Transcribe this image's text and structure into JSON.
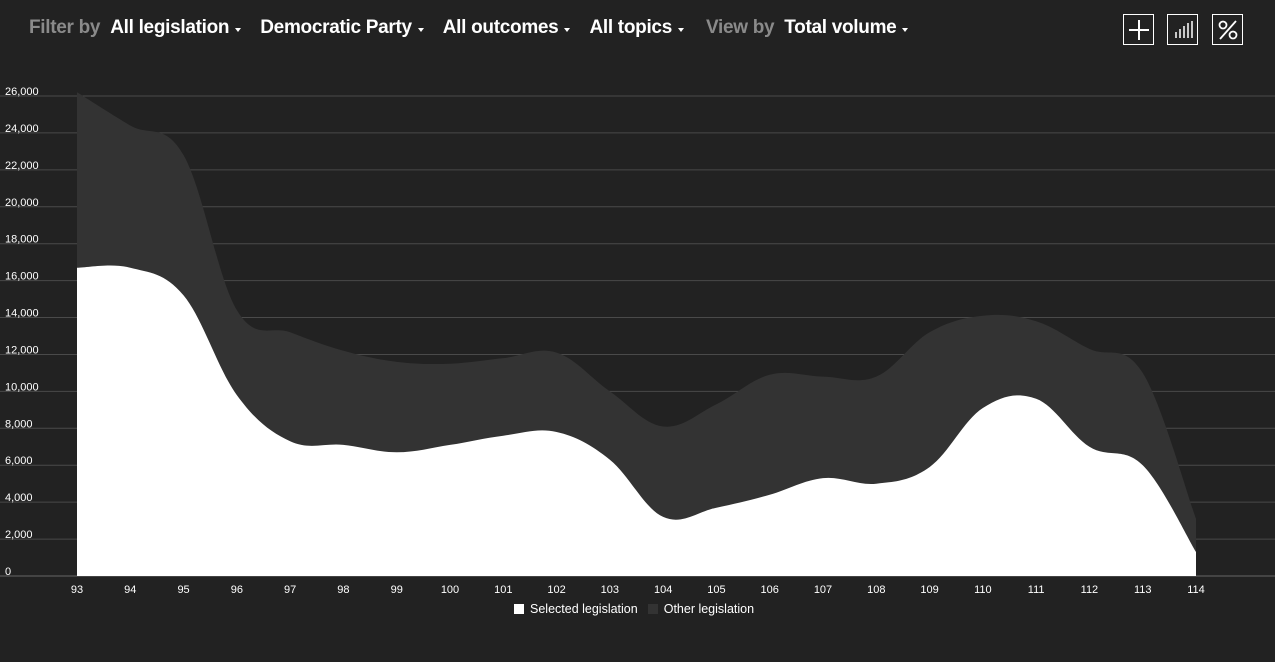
{
  "filters": {
    "filter_by_label": "Filter by",
    "legislation": "All legislation",
    "party": "Democratic Party",
    "outcomes": "All outcomes",
    "topics": "All topics",
    "view_by_label": "View by",
    "view": "Total volume"
  },
  "icons": [
    "plus-icon",
    "bar-chart-icon",
    "percent-icon"
  ],
  "colors": {
    "background": "#222222",
    "selected": "#ffffff",
    "other": "#333333",
    "grid": "#4a4a4a"
  },
  "chart_data": {
    "type": "area",
    "stacked": true,
    "x": [
      "93",
      "94",
      "95",
      "96",
      "97",
      "98",
      "99",
      "100",
      "101",
      "102",
      "103",
      "104",
      "105",
      "106",
      "107",
      "108",
      "109",
      "110",
      "111",
      "112",
      "113",
      "114"
    ],
    "series": [
      {
        "name": "Selected legislation",
        "values": [
          16700,
          16700,
          15200,
          9800,
          7300,
          7100,
          6700,
          7100,
          7600,
          7800,
          6300,
          3200,
          3700,
          4400,
          5300,
          5000,
          5900,
          9100,
          9600,
          7000,
          6000,
          1300
        ]
      },
      {
        "name": "Other legislation",
        "values": [
          9500,
          7700,
          7600,
          4600,
          5900,
          5100,
          4900,
          4400,
          4200,
          4300,
          3700,
          4900,
          5600,
          6500,
          5500,
          5800,
          7300,
          5000,
          4200,
          5300,
          5000,
          1800
        ]
      }
    ],
    "ylim": [
      0,
      26000
    ],
    "yticks": [
      "0",
      "2,000",
      "4,000",
      "6,000",
      "8,000",
      "10,000",
      "12,000",
      "14,000",
      "16,000",
      "18,000",
      "20,000",
      "22,000",
      "24,000",
      "26,000"
    ],
    "grid": true,
    "legend_position": "bottom-center"
  }
}
